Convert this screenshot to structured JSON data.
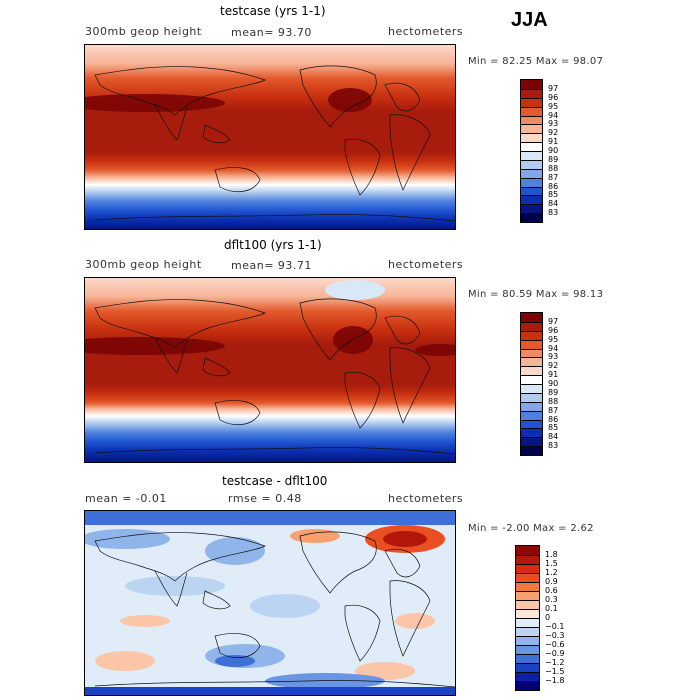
{
  "season": "JJA",
  "panels": [
    {
      "title": "testcase (yrs 1-1)",
      "left_label": "300mb geop height",
      "center_label": "mean=   93.70",
      "units": "hectometers",
      "minmax": "Min =  82.25 Max =  98.07",
      "colorbar": {
        "labels": [
          "97",
          "96",
          "95",
          "94",
          "93",
          "92",
          "91",
          "90",
          "89",
          "88",
          "87",
          "86",
          "85",
          "84",
          "83"
        ],
        "colors": [
          "#7a0403",
          "#a71c0c",
          "#c8300f",
          "#e35a2c",
          "#f08a5f",
          "#f7b598",
          "#fbd9c8",
          "#ffffff",
          "#d8e8f7",
          "#b0ccee",
          "#80a8e6",
          "#4f82de",
          "#1f55d2",
          "#0b2fb0",
          "#041683",
          "#00004b"
        ]
      },
      "chart_data": {
        "type": "heatmap",
        "title": "testcase (yrs 1-1)",
        "variable": "300mb geop height",
        "units": "hectometers",
        "mean": 93.7,
        "min": 82.25,
        "max": 98.07,
        "zonal_profile": {
          "latitude": [
            90,
            75,
            60,
            45,
            30,
            15,
            0,
            -15,
            -30,
            -45,
            -55,
            -65,
            -75,
            -90
          ],
          "value": [
            91.5,
            92.5,
            94.2,
            95.8,
            96.6,
            96.5,
            96.4,
            96.2,
            95.6,
            93.5,
            90.0,
            86.5,
            84.0,
            83.0
          ]
        }
      }
    },
    {
      "title": "dflt100 (yrs 1-1)",
      "left_label": "300mb geop height",
      "center_label": "mean=   93.71",
      "units": "hectometers",
      "minmax": "Min =  80.59 Max =  98.13",
      "colorbar": {
        "labels": [
          "97",
          "96",
          "95",
          "94",
          "93",
          "92",
          "91",
          "90",
          "89",
          "88",
          "87",
          "86",
          "85",
          "84",
          "83"
        ],
        "colors": [
          "#7a0403",
          "#a71c0c",
          "#c8300f",
          "#e35a2c",
          "#f08a5f",
          "#f7b598",
          "#fbd9c8",
          "#ffffff",
          "#d8e8f7",
          "#b0ccee",
          "#80a8e6",
          "#4f82de",
          "#1f55d2",
          "#0b2fb0",
          "#041683",
          "#00004b"
        ]
      },
      "chart_data": {
        "type": "heatmap",
        "title": "dflt100 (yrs 1-1)",
        "variable": "300mb geop height",
        "units": "hectometers",
        "mean": 93.71,
        "min": 80.59,
        "max": 98.13,
        "zonal_profile": {
          "latitude": [
            90,
            75,
            60,
            45,
            30,
            15,
            0,
            -15,
            -30,
            -45,
            -55,
            -65,
            -75,
            -90
          ],
          "value": [
            90.5,
            92.0,
            94.0,
            95.8,
            96.6,
            96.4,
            96.3,
            96.1,
            95.5,
            93.3,
            89.5,
            85.5,
            83.5,
            82.0
          ]
        }
      }
    },
    {
      "title": "testcase - dflt100",
      "left_label": "mean =   -0.01",
      "center_label": "rmse =    0.48",
      "units": "hectometers",
      "minmax": "Min =  -2.00 Max =   2.62",
      "colorbar": {
        "labels": [
          "1.8",
          "1.5",
          "1.2",
          "0.9",
          "0.6",
          "0.3",
          "0.1",
          "0",
          "−0.1",
          "−0.3",
          "−0.6",
          "−0.9",
          "−1.2",
          "−1.5",
          "−1.8"
        ],
        "colors": [
          "#8c0a04",
          "#b3170a",
          "#d42d12",
          "#ea4f22",
          "#f3773f",
          "#f8a070",
          "#fbc6a8",
          "#ffe6da",
          "#e0edf9",
          "#bad4f2",
          "#8fb5ea",
          "#6a95e2",
          "#3f6fd8",
          "#1a43c4",
          "#0a22a0",
          "#00007a"
        ]
      },
      "chart_data": {
        "type": "heatmap",
        "title": "testcase - dflt100",
        "units": "hectometers",
        "mean": -0.01,
        "rmse": 0.48,
        "min": -2.0,
        "max": 2.62
      }
    }
  ]
}
